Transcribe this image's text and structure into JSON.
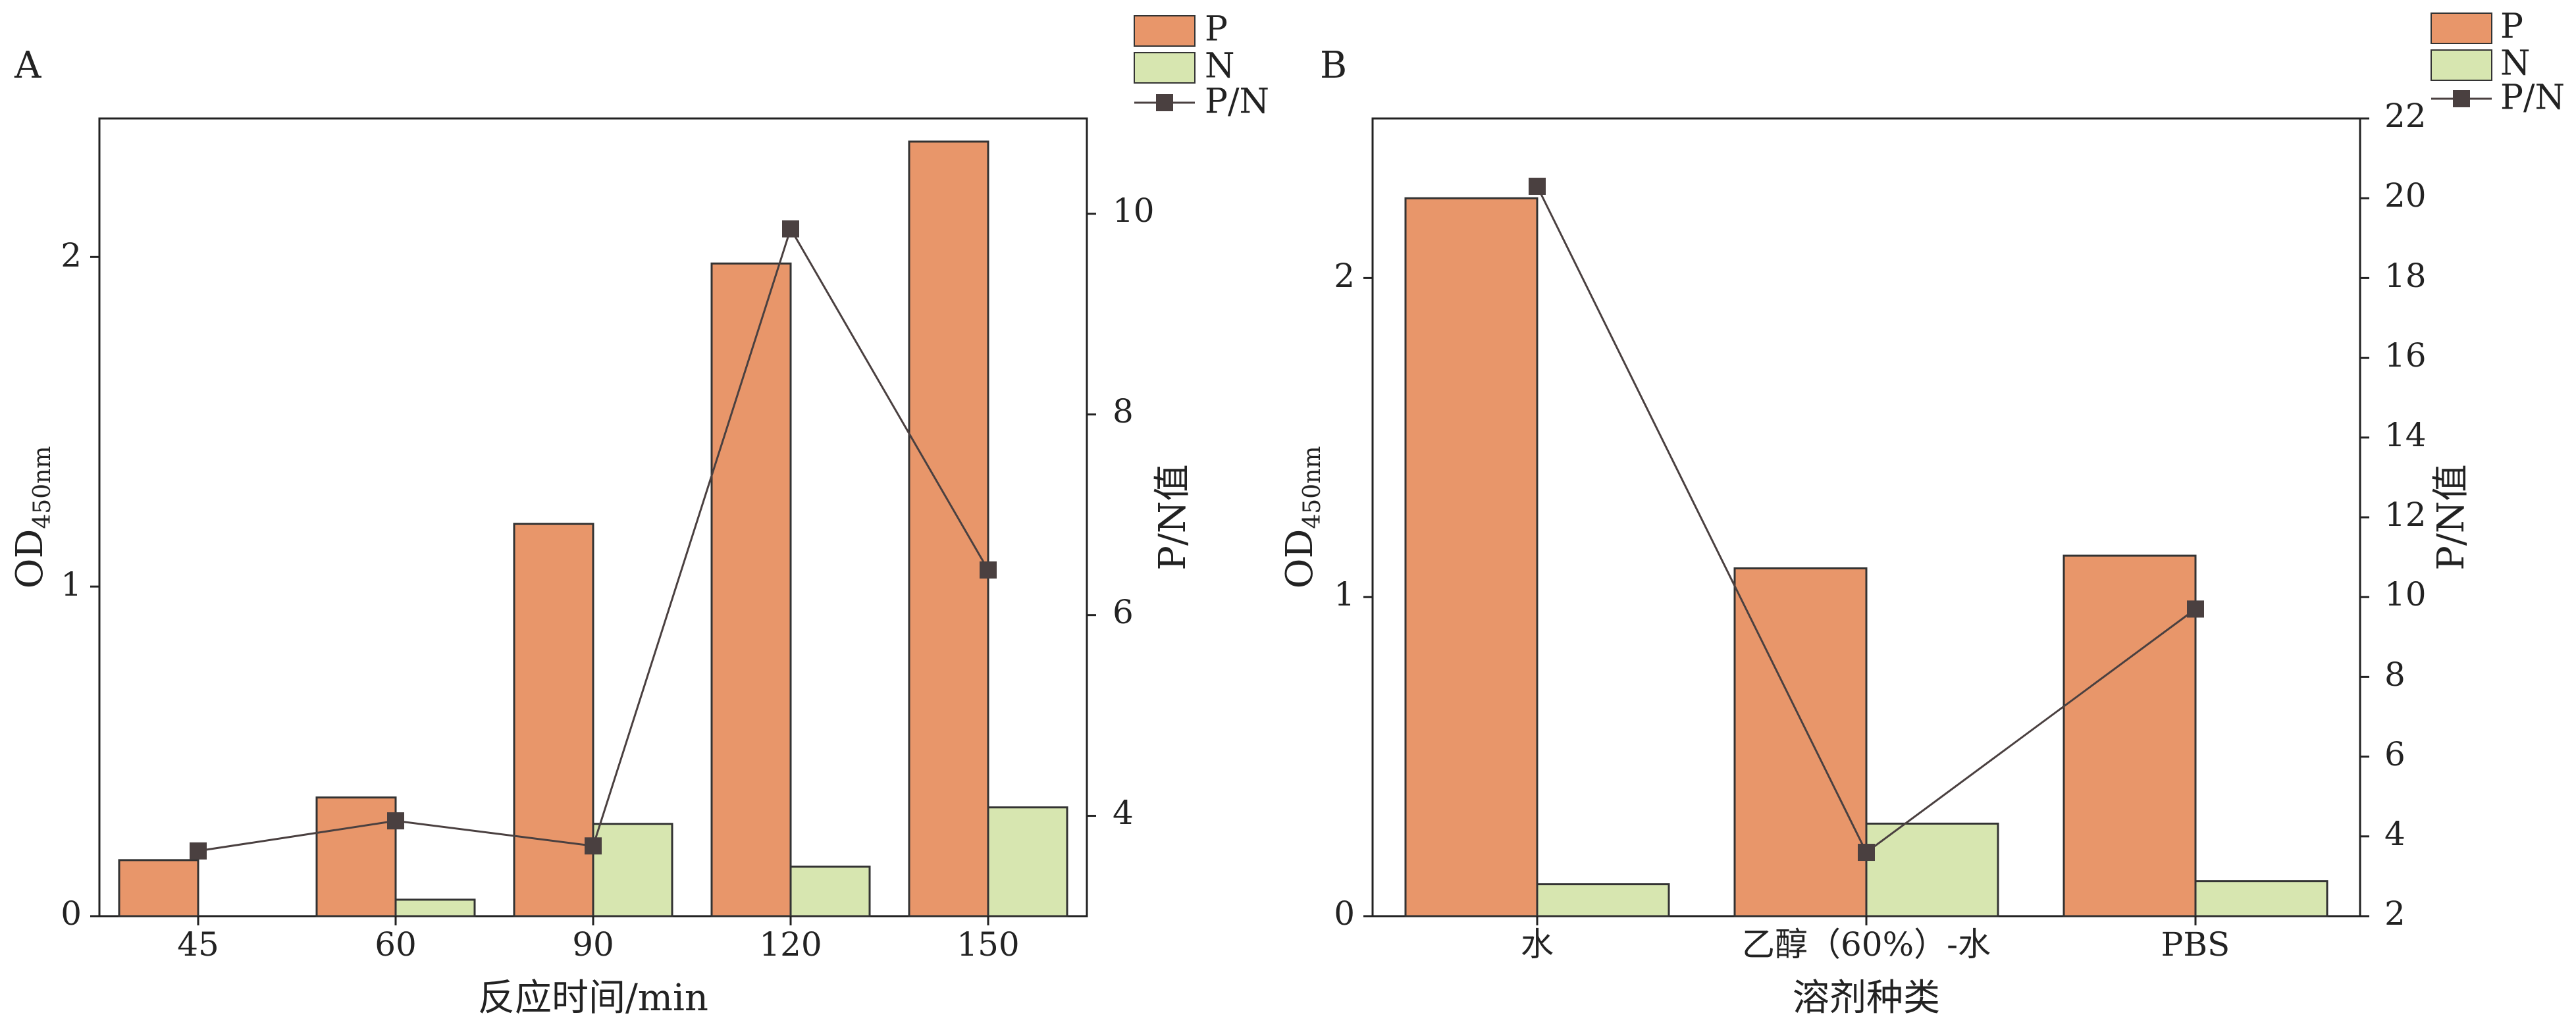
{
  "colors": {
    "P": "#e8966a",
    "N": "#d7e6b0",
    "PN": "#4a4040",
    "axis": "#222222"
  },
  "chart_data": [
    {
      "panel": "A",
      "type": "bar",
      "categories": [
        "45",
        "60",
        "90",
        "120",
        "150"
      ],
      "series": [
        {
          "name": "P",
          "axis": "left",
          "values": [
            0.17,
            0.36,
            1.19,
            1.98,
            2.35
          ]
        },
        {
          "name": "N",
          "axis": "left",
          "values": [
            0.0,
            0.05,
            0.28,
            0.15,
            0.33
          ]
        },
        {
          "name": "P/N",
          "type": "line",
          "axis": "right",
          "values": [
            3.65,
            3.95,
            3.7,
            9.85,
            6.45
          ]
        }
      ],
      "xlabel": "反应时间/min",
      "ylabel_main": "OD",
      "ylabel_sub": "450nm",
      "y2label": "P/N值",
      "ylim": [
        0,
        2.42
      ],
      "y2lim": [
        3,
        10.95
      ],
      "yticks": [
        "0",
        "1",
        "2"
      ],
      "y2ticks": [
        "4",
        "6",
        "8",
        "10"
      ],
      "legend": [
        "P",
        "N",
        "P/N"
      ],
      "legend_position": "top-right"
    },
    {
      "panel": "B",
      "type": "bar",
      "categories": [
        "水",
        "乙醇（60%）-水",
        "PBS"
      ],
      "series": [
        {
          "name": "P",
          "axis": "left",
          "values": [
            2.25,
            1.09,
            1.13
          ]
        },
        {
          "name": "N",
          "axis": "left",
          "values": [
            0.1,
            0.29,
            0.11
          ]
        },
        {
          "name": "P/N",
          "type": "line",
          "axis": "right",
          "values": [
            20.3,
            3.6,
            9.7
          ]
        }
      ],
      "xlabel": "溶剂种类",
      "ylabel_main": "OD",
      "ylabel_sub": "450nm",
      "y2label": "P/N值",
      "ylim": [
        0,
        2.5
      ],
      "y2lim": [
        2,
        22
      ],
      "yticks": [
        "0",
        "1",
        "2"
      ],
      "y2ticks": [
        "2",
        "4",
        "6",
        "8",
        "10",
        "12",
        "14",
        "16",
        "18",
        "20",
        "22"
      ],
      "legend": [
        "P",
        "N",
        "P/N"
      ],
      "legend_position": "top-right"
    }
  ]
}
